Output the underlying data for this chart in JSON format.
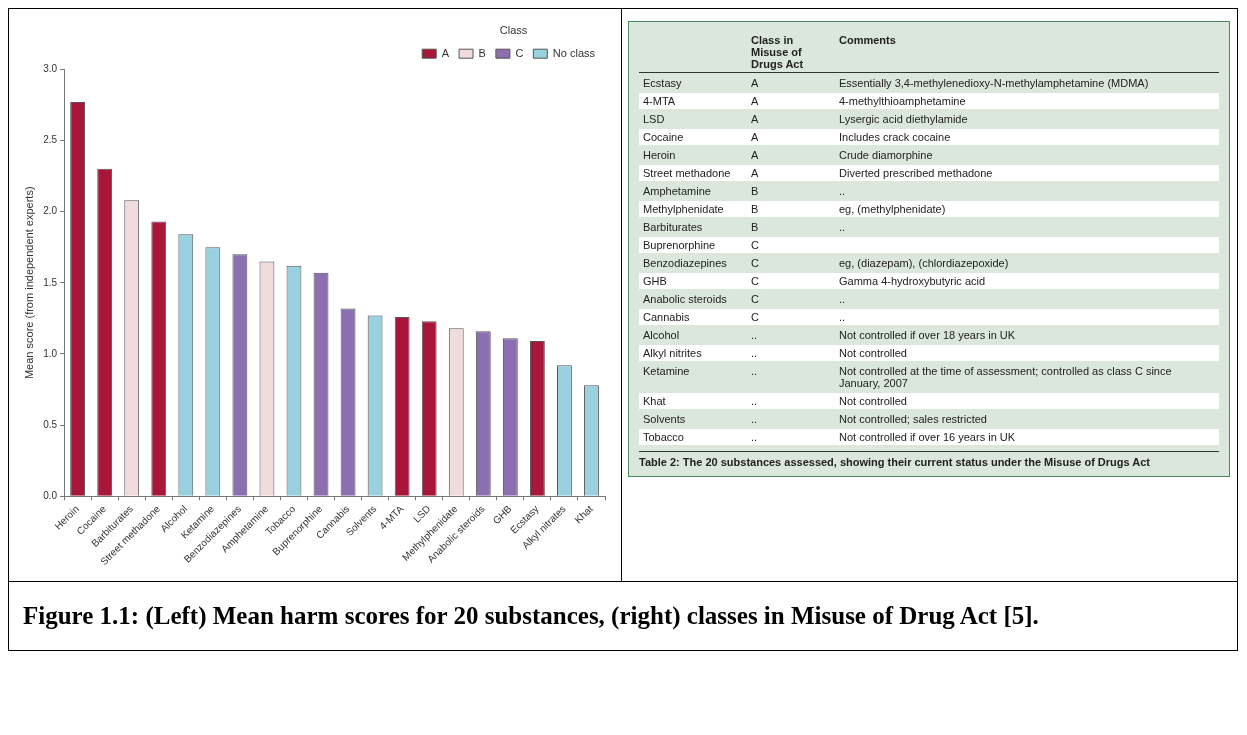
{
  "chart_data": [
    {
      "type": "bar",
      "ylabel": "Mean score (from independent experts)",
      "legend_title": "Class",
      "legend": "top right",
      "grid": false,
      "categories": [
        "Heroin",
        "Cocaine",
        "Barbiturates",
        "Street methadone",
        "Alcohol",
        "Ketamine",
        "Benzodiazepines",
        "Amphetamine",
        "Tobacco",
        "Buprenorphine",
        "Cannabis",
        "Solvents",
        "4-MTA",
        "LSD",
        "Methylphenidate",
        "Anabolic steroids",
        "GHB",
        "Ecstasy",
        "Alkyl nitrates",
        "Khat"
      ],
      "series": [
        {
          "name": "A",
          "color": "#a8173a",
          "values": [
            2.77,
            2.3,
            null,
            1.93,
            null,
            null,
            null,
            null,
            null,
            null,
            null,
            null,
            1.26,
            1.23,
            null,
            null,
            null,
            1.09,
            null,
            null
          ]
        },
        {
          "name": "B",
          "color": "#f0dcdc",
          "values": [
            null,
            null,
            2.08,
            null,
            null,
            null,
            null,
            1.65,
            null,
            null,
            null,
            null,
            null,
            null,
            1.18,
            null,
            null,
            null,
            null,
            null
          ]
        },
        {
          "name": "C",
          "color": "#8c6fb0",
          "values": [
            null,
            null,
            null,
            null,
            null,
            null,
            1.7,
            null,
            null,
            1.57,
            1.32,
            null,
            null,
            null,
            null,
            1.16,
            1.11,
            null,
            null,
            null
          ]
        },
        {
          "name": "No class",
          "color": "#99d1e1",
          "values": [
            null,
            null,
            null,
            null,
            1.84,
            1.75,
            null,
            null,
            1.62,
            null,
            null,
            1.27,
            null,
            null,
            null,
            null,
            null,
            null,
            0.92,
            0.78
          ]
        }
      ],
      "ylim": [
        0,
        3
      ],
      "yticks": [
        {
          "value": 0,
          "label": "0.0"
        },
        0.5,
        {
          "value": 1,
          "label": "1.0"
        },
        1.5,
        {
          "value": 2,
          "label": "2.0"
        },
        2.5,
        {
          "value": 3,
          "label": "3.0"
        }
      ],
      "annotations": [
        "Figure 1.1: (Left) Mean harm scores for 20 substances, (right) classes in Misuse of Drug Act [5]."
      ]
    },
    {
      "type": "other",
      "title": "Table 2: The 20 substances assessed, showing their current status under the Misuse of Drugs Act",
      "categories": [
        null,
        "Class in Misuse of Drugs Act",
        "Comments"
      ],
      "y_categories": [
        "Ecstasy",
        "4-MTA",
        "LSD",
        "Cocaine",
        "Heroin",
        "Street methadone",
        "Amphetamine",
        "Methylphenidate",
        "Barbiturates",
        "Buprenorphine",
        "Benzodiazepines",
        "GHB",
        "Anabolic steroids",
        "Cannabis",
        "Alcohol",
        "Alkyl nitrites",
        "Ketamine",
        "Khat",
        "Solvents",
        "Tobacco"
      ],
      "cell_labels": [
        [
          "A",
          "Essentially 3,4-methylenedioxy-N-methylamphetamine (MDMA)"
        ],
        [
          "A",
          "4-methylthioamphetamine"
        ],
        [
          "A",
          "Lysergic acid diethylamide"
        ],
        [
          "A",
          "Includes crack cocaine"
        ],
        [
          "A",
          "Crude diamorphine"
        ],
        [
          "A",
          "Diverted prescribed methadone"
        ],
        [
          "B",
          ".."
        ],
        [
          "B",
          "eg, (methylphenidate)"
        ],
        [
          "B",
          ".."
        ],
        [
          "C",
          null
        ],
        [
          "C",
          "eg, (diazepam), (chlordiazepoxide)"
        ],
        [
          "C",
          "Gamma 4-hydroxybutyric acid"
        ],
        [
          "C",
          ".."
        ],
        [
          "C",
          ".."
        ],
        [
          "..",
          "Not controlled if over 18 years in UK"
        ],
        [
          "..",
          "Not controlled"
        ],
        [
          "..",
          "Not controlled at the time of assessment; controlled as class C since January, 2007"
        ],
        [
          "..",
          "Not controlled"
        ],
        [
          "..",
          "Not controlled; sales restricted"
        ],
        [
          "..",
          "Not controlled if over 16 years in UK"
        ]
      ]
    }
  ]
}
